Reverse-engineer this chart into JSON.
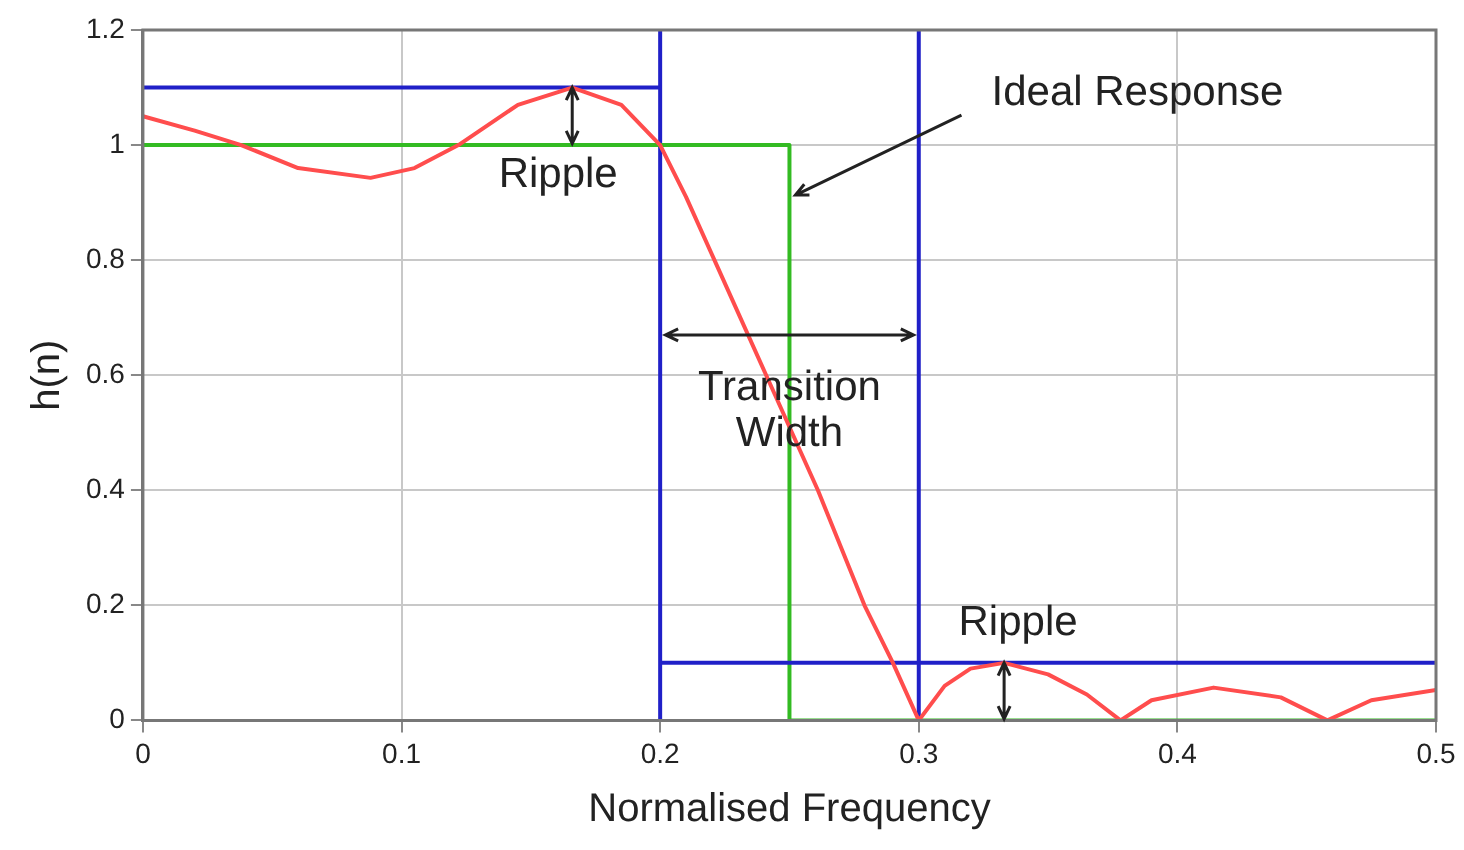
{
  "chart_data": {
    "type": "line",
    "xlabel": "Normalised Frequency",
    "ylabel": "h(n)",
    "xlim": [
      0,
      0.5
    ],
    "xticks": [
      0,
      0.1,
      0.2,
      0.3,
      0.4,
      0.5
    ],
    "ylim": [
      0,
      1.2
    ],
    "yticks": [
      0,
      0.2,
      0.4,
      0.6,
      0.8,
      1,
      1.2
    ],
    "grid": true,
    "legend": false,
    "marker": "none",
    "line_style": "solid",
    "series": [
      {
        "color": "#ff4d4d",
        "x": [
          0,
          0.02,
          0.038,
          0.06,
          0.088,
          0.105,
          0.122,
          0.145,
          0.166,
          0.185,
          0.2,
          0.21,
          0.221,
          0.241,
          0.261,
          0.279,
          0.29,
          0.3,
          0.31,
          0.32,
          0.333,
          0.35,
          0.365,
          0.378,
          0.39,
          0.414,
          0.44,
          0.458,
          0.475,
          0.5
        ],
        "values": [
          1.05,
          1.025,
          1,
          0.96,
          0.943,
          0.96,
          1,
          1.07,
          1.1,
          1.07,
          1,
          0.91,
          0.8,
          0.6,
          0.4,
          0.2,
          0.1,
          0,
          0.06,
          0.09,
          0.1,
          0.08,
          0.045,
          0,
          0.035,
          0.057,
          0.04,
          0,
          0.035,
          0.053
        ]
      },
      {
        "color": "#2020c8",
        "x": [
          0,
          0.2
        ],
        "values": [
          1.1,
          1.1
        ]
      },
      {
        "color": "#2020c8",
        "x": [
          0.2,
          0.5
        ],
        "values": [
          0.1,
          0.1
        ]
      },
      {
        "color": "#33bb22",
        "x": [
          0,
          0.25,
          0.25,
          0.5
        ],
        "values": [
          1,
          1,
          0,
          0
        ]
      }
    ],
    "ref_lines": [
      {
        "axis": "x",
        "value": 0.2,
        "color": "#2020c8"
      },
      {
        "axis": "x",
        "value": 0.3,
        "color": "#2020c8"
      }
    ],
    "annotations": [
      {
        "text": "Ripple",
        "x": 0.166,
        "y": 1.1
      },
      {
        "text": "Ideal Response",
        "x": 0.25,
        "y": 0.92
      },
      {
        "text": "Transition Width",
        "x": 0.25,
        "y": 0.67
      },
      {
        "text": "Ripple",
        "x": 0.333,
        "y": 0.1
      }
    ]
  }
}
